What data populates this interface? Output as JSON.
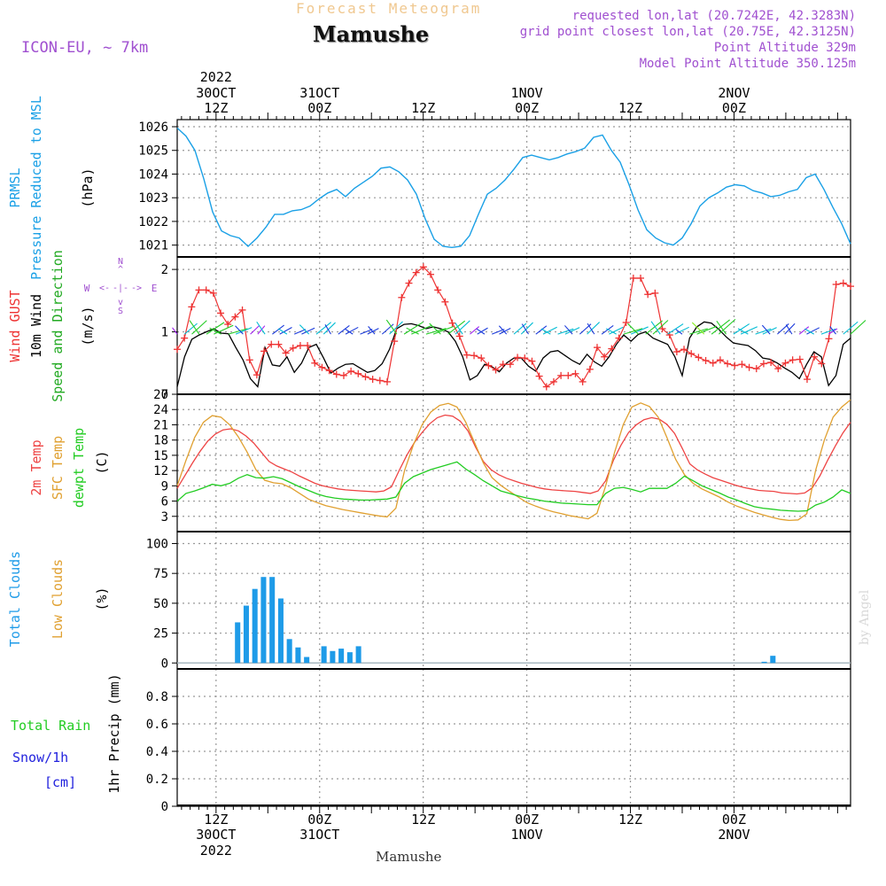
{
  "header": {
    "product": "Forecast Meteogram",
    "station": "Mamushe",
    "model": "ICON-EU, ~ 7km",
    "requested": "requested lon,lat (20.7242E, 42.3283N)",
    "gridpoint": "grid point closest lon,lat (20.75E, 42.3125N)",
    "altitude": "Point Altitude 329m",
    "model_altitude": "Model Point Altitude 350.125m",
    "credit": "by Angel",
    "footer_station": "Mamushe"
  },
  "colors": {
    "pressure": "#1aa0e6",
    "gust": "#ee3333",
    "wind": "#000000",
    "temp": "#ee4444",
    "sfc": "#e0a030",
    "dewpt": "#22cc22",
    "clouds": "#1e9be8",
    "lowclouds": "#e0a030",
    "rain": "#22cc22",
    "snow": "#2222dd",
    "purple": "#a050d0"
  },
  "time_axis": {
    "top": [
      {
        "h": 12,
        "l1": "2022",
        "l2": "30OCT",
        "l3": "12Z"
      },
      {
        "h": 24,
        "l1": "",
        "l2": "31OCT",
        "l3": "00Z"
      },
      {
        "h": 36,
        "l1": "",
        "l2": "",
        "l3": "12Z"
      },
      {
        "h": 48,
        "l1": "",
        "l2": "1NOV",
        "l3": "00Z"
      },
      {
        "h": 60,
        "l1": "",
        "l2": "",
        "l3": "12Z"
      },
      {
        "h": 72,
        "l1": "",
        "l2": "2NOV",
        "l3": "00Z"
      }
    ],
    "bottom": [
      {
        "h": 12,
        "l1": "12Z",
        "l2": "30OCT",
        "l3": "2022"
      },
      {
        "h": 24,
        "l1": "00Z",
        "l2": "31OCT",
        "l3": ""
      },
      {
        "h": 36,
        "l1": "12Z",
        "l2": "",
        "l3": ""
      },
      {
        "h": 48,
        "l1": "00Z",
        "l2": "1NOV",
        "l3": ""
      },
      {
        "h": 60,
        "l1": "12Z",
        "l2": "",
        "l3": ""
      },
      {
        "h": 72,
        "l1": "00Z",
        "l2": "2NOV",
        "l3": ""
      }
    ]
  },
  "chart_data": [
    {
      "type": "line",
      "panel": "pressure",
      "ylabel_lines": [
        "PRMSL",
        "Pressure Reduced to MSL"
      ],
      "unit": "(hPa)",
      "ylim": [
        1020.5,
        1026.3
      ],
      "yticks": [
        1021,
        1022,
        1023,
        1024,
        1025,
        1026
      ],
      "x_start_hour": 7.5,
      "x_end_hour": 85.5,
      "grid": true,
      "series": [
        {
          "values": [
            1025.95,
            1025.6,
            1025.0,
            1023.8,
            1022.4,
            1021.6,
            1021.4,
            1021.3,
            1020.95,
            1021.3,
            1021.75,
            1022.3,
            1022.3,
            1022.45,
            1022.5,
            1022.65,
            1022.95,
            1023.2,
            1023.35,
            1023.05,
            1023.4,
            1023.65,
            1023.9,
            1024.25,
            1024.3,
            1024.1,
            1023.75,
            1023.15,
            1022.1,
            1021.25,
            1020.95,
            1020.9,
            1020.95,
            1021.4,
            1022.3,
            1023.15,
            1023.4,
            1023.75,
            1024.2,
            1024.7,
            1024.8,
            1024.7,
            1024.6,
            1024.7,
            1024.85,
            1024.95,
            1025.1,
            1025.55,
            1025.65,
            1025.0,
            1024.5,
            1023.55,
            1022.5,
            1021.65,
            1021.3,
            1021.1,
            1021.0,
            1021.3,
            1021.9,
            1022.65,
            1023.0,
            1023.2,
            1023.45,
            1023.55,
            1023.5,
            1023.3,
            1023.2,
            1023.05,
            1023.1,
            1023.25,
            1023.35,
            1023.85,
            1024.0,
            1023.35,
            1022.6,
            1021.9,
            1021.05
          ]
        }
      ]
    },
    {
      "type": "line",
      "panel": "wind",
      "ylabel_lines": [
        "Wind GUST",
        "10m Wind",
        "Speed and Direction"
      ],
      "unit": "(m/s)",
      "compass": {
        "n": "N",
        "s": "S",
        "w": "W",
        "e": "E",
        "top": "^",
        "bottom": "v",
        "left": "<-",
        "right": "->",
        "center": "-|-"
      },
      "ylim": [
        0,
        2.2
      ],
      "yticks": [
        0,
        1,
        2
      ],
      "x_start_hour": 7.5,
      "x_end_hour": 85.5,
      "grid": true,
      "series": [
        {
          "name": "Wind GUST",
          "marker": "+",
          "values": [
            0.72,
            0.9,
            1.4,
            1.67,
            1.67,
            1.62,
            1.3,
            1.12,
            1.24,
            1.35,
            0.55,
            0.31,
            0.69,
            0.8,
            0.8,
            0.66,
            0.74,
            0.78,
            0.78,
            0.5,
            0.43,
            0.38,
            0.32,
            0.3,
            0.37,
            0.33,
            0.28,
            0.24,
            0.22,
            0.2,
            0.85,
            1.55,
            1.78,
            1.95,
            2.04,
            1.92,
            1.67,
            1.48,
            1.14,
            0.93,
            0.63,
            0.62,
            0.58,
            0.46,
            0.39,
            0.48,
            0.48,
            0.59,
            0.58,
            0.53,
            0.29,
            0.12,
            0.2,
            0.3,
            0.3,
            0.33,
            0.2,
            0.4,
            0.75,
            0.6,
            0.73,
            0.9,
            1.15,
            1.86,
            1.86,
            1.6,
            1.62,
            1.05,
            0.95,
            0.68,
            0.72,
            0.65,
            0.59,
            0.54,
            0.5,
            0.55,
            0.49,
            0.46,
            0.48,
            0.43,
            0.41,
            0.49,
            0.51,
            0.41,
            0.5,
            0.55,
            0.56,
            0.24,
            0.6,
            0.49,
            0.89,
            1.76,
            1.78,
            1.73
          ]
        },
        {
          "name": "10m Wind",
          "values": [
            0.12,
            0.6,
            0.88,
            0.95,
            1.0,
            1.05,
            0.98,
            0.97,
            0.75,
            0.55,
            0.25,
            0.12,
            0.75,
            0.47,
            0.45,
            0.6,
            0.35,
            0.5,
            0.75,
            0.8,
            0.58,
            0.34,
            0.42,
            0.48,
            0.49,
            0.42,
            0.35,
            0.38,
            0.49,
            0.72,
            1.05,
            1.12,
            1.13,
            1.1,
            1.05,
            1.08,
            1.05,
            1.0,
            0.85,
            0.6,
            0.23,
            0.3,
            0.48,
            0.44,
            0.36,
            0.5,
            0.58,
            0.58,
            0.45,
            0.37,
            0.58,
            0.68,
            0.7,
            0.62,
            0.54,
            0.48,
            0.64,
            0.52,
            0.45,
            0.6,
            0.8,
            0.95,
            0.85,
            0.96,
            1.0,
            0.9,
            0.85,
            0.8,
            0.6,
            0.3,
            0.9,
            1.08,
            1.16,
            1.14,
            1.04,
            0.92,
            0.82,
            0.8,
            0.78,
            0.7,
            0.58,
            0.56,
            0.5,
            0.42,
            0.35,
            0.25,
            0.48,
            0.68,
            0.6,
            0.14,
            0.3,
            0.8,
            0.9
          ]
        }
      ],
      "wind_barbs_color_scale": [
        "#a020f0",
        "#1a3adb",
        "#00bcd4",
        "#22cc22",
        "#88ee22"
      ]
    },
    {
      "type": "line",
      "panel": "temperature",
      "ylabel_lines": [
        "2m Temp",
        "SFC Temp",
        "dewpt Temp"
      ],
      "unit": "(C)",
      "ylim": [
        0,
        27
      ],
      "yticks": [
        3,
        6,
        9,
        12,
        15,
        18,
        21,
        24,
        27
      ],
      "x_start_hour": 7.5,
      "x_end_hour": 85.5,
      "grid": true,
      "series": [
        {
          "name": "2m Temp",
          "values": [
            8.5,
            11,
            13.5,
            15.8,
            17.8,
            19.2,
            20,
            20.2,
            19.8,
            18.8,
            17.4,
            15.6,
            13.8,
            12.9,
            12.3,
            11.7,
            10.9,
            10.2,
            9.5,
            9,
            8.7,
            8.4,
            8.2,
            8.1,
            8,
            7.9,
            7.8,
            8,
            8.8,
            12,
            15,
            17.5,
            19.5,
            21.2,
            22.4,
            22.9,
            22.7,
            21.7,
            19.8,
            16.6,
            13.8,
            12.2,
            11.2,
            10.5,
            10,
            9.5,
            9.1,
            8.7,
            8.4,
            8.2,
            8.1,
            8,
            7.9,
            7.7,
            7.5,
            8,
            10,
            14,
            17,
            19.5,
            21,
            22,
            22.4,
            22.1,
            21.1,
            19.3,
            16.4,
            13.3,
            12.1,
            11.3,
            10.6,
            10.1,
            9.6,
            9.1,
            8.7,
            8.4,
            8.1,
            8,
            7.9,
            7.6,
            7.5,
            7.4,
            7.6,
            8.6,
            11,
            14,
            16.8,
            19.4,
            21.5
          ]
        },
        {
          "name": "SFC Temp",
          "values": [
            9,
            14,
            18.5,
            21.5,
            22.8,
            22.5,
            21,
            18.6,
            15.6,
            12.2,
            10.1,
            9.6,
            9.4,
            8.6,
            7.5,
            6.4,
            5.7,
            5.1,
            4.7,
            4.3,
            4,
            3.7,
            3.4,
            3.1,
            2.9,
            4.6,
            12,
            17,
            21,
            23.5,
            24.8,
            25.2,
            24.5,
            21.5,
            17.5,
            13.5,
            10.6,
            9.1,
            7.9,
            6.8,
            5.7,
            5,
            4.4,
            3.9,
            3.5,
            3.1,
            2.8,
            2.5,
            3.6,
            9,
            15.5,
            21,
            24.5,
            25.3,
            24.6,
            22.5,
            18.5,
            14.2,
            11.2,
            9.5,
            8.4,
            7.6,
            6.8,
            5.8,
            5,
            4.4,
            3.8,
            3.3,
            2.8,
            2.4,
            2.2,
            2.3,
            3.5,
            12,
            18,
            22.5,
            24.5,
            25.9
          ]
        },
        {
          "name": "dewpt Temp",
          "values": [
            6,
            7.5,
            8,
            8.6,
            9.3,
            9,
            9.5,
            10.5,
            11.2,
            10.6,
            10.5,
            10.8,
            10.4,
            9.6,
            8.8,
            8.1,
            7.4,
            6.9,
            6.6,
            6.4,
            6.3,
            6.2,
            6.2,
            6.3,
            6.4,
            6.8,
            9.5,
            10.8,
            11.5,
            12.2,
            12.7,
            13.2,
            13.7,
            12.3,
            11.2,
            10,
            9,
            8,
            7.5,
            7,
            6.6,
            6.3,
            6,
            5.8,
            5.6,
            5.5,
            5.4,
            5.3,
            5.3,
            7.5,
            8.5,
            8.7,
            8.3,
            7.8,
            8.5,
            8.5,
            8.5,
            9.5,
            10.9,
            10,
            9,
            8.3,
            7.6,
            6.8,
            6.2,
            5.5,
            4.9,
            4.6,
            4.4,
            4.2,
            4.1,
            4,
            4.1,
            5.2,
            5.8,
            6.8,
            8.2,
            7.5
          ]
        }
      ]
    },
    {
      "type": "bar",
      "panel": "clouds",
      "ylabel_lines": [
        "Total Clouds",
        "Low Clouds"
      ],
      "unit": "(%)",
      "ylim": [
        -5,
        110
      ],
      "yticks": [
        0,
        25,
        50,
        75,
        100
      ],
      "grid": true,
      "bars": [
        {
          "x": 14.5,
          "v": 34
        },
        {
          "x": 15.5,
          "v": 48
        },
        {
          "x": 16.5,
          "v": 62
        },
        {
          "x": 17.5,
          "v": 72
        },
        {
          "x": 18.5,
          "v": 72
        },
        {
          "x": 19.5,
          "v": 54
        },
        {
          "x": 20.5,
          "v": 20
        },
        {
          "x": 21.5,
          "v": 13
        },
        {
          "x": 22.5,
          "v": 5
        },
        {
          "x": 24.5,
          "v": 14
        },
        {
          "x": 25.5,
          "v": 10
        },
        {
          "x": 26.5,
          "v": 12
        },
        {
          "x": 27.5,
          "v": 9
        },
        {
          "x": 28.5,
          "v": 14
        },
        {
          "x": 75.5,
          "v": 1
        },
        {
          "x": 76.5,
          "v": 6
        }
      ]
    },
    {
      "type": "line",
      "panel": "precipitation",
      "ylabel_lines": [
        "Total Rain",
        "Snow/1h",
        "[cm]"
      ],
      "unit": "1hr Precip (mm)",
      "ylim": [
        0,
        1
      ],
      "yticks": [
        0,
        0.2,
        0.4,
        0.6,
        0.8
      ],
      "grid": true,
      "series": []
    }
  ]
}
